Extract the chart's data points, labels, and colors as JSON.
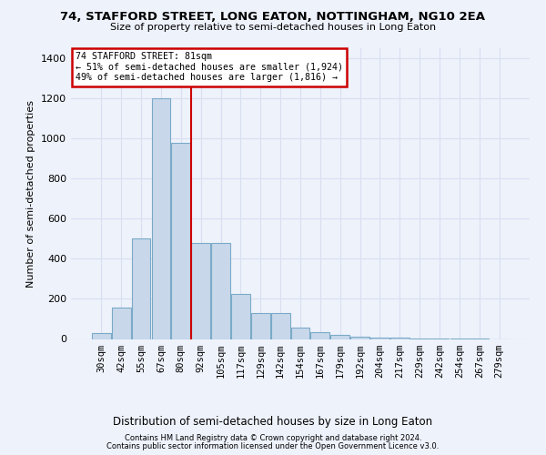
{
  "title": "74, STAFFORD STREET, LONG EATON, NOTTINGHAM, NG10 2EA",
  "subtitle": "Size of property relative to semi-detached houses in Long Eaton",
  "xlabel": "Distribution of semi-detached houses by size in Long Eaton",
  "ylabel": "Number of semi-detached properties",
  "annotation_line1": "74 STAFFORD STREET: 81sqm",
  "annotation_line2": "← 51% of semi-detached houses are smaller (1,924)",
  "annotation_line3": "49% of semi-detached houses are larger (1,816) →",
  "footer1": "Contains HM Land Registry data © Crown copyright and database right 2024.",
  "footer2": "Contains public sector information licensed under the Open Government Licence v3.0.",
  "bar_color": "#c8d8ea",
  "bar_edge_color": "#7aaac8",
  "vline_color": "#cc0000",
  "annotation_box_edgecolor": "#cc0000",
  "background_color": "#eef2fb",
  "grid_color": "#d8dff0",
  "categories": [
    "30sqm",
    "42sqm",
    "55sqm",
    "67sqm",
    "80sqm",
    "92sqm",
    "105sqm",
    "117sqm",
    "129sqm",
    "142sqm",
    "154sqm",
    "167sqm",
    "179sqm",
    "192sqm",
    "204sqm",
    "217sqm",
    "229sqm",
    "242sqm",
    "254sqm",
    "267sqm",
    "279sqm"
  ],
  "values": [
    28,
    155,
    500,
    1200,
    975,
    480,
    480,
    225,
    130,
    130,
    55,
    35,
    20,
    10,
    8,
    5,
    3,
    2,
    1,
    1,
    0
  ],
  "vline_index": 4.5,
  "ylim": [
    0,
    1450
  ],
  "yticks": [
    0,
    200,
    400,
    600,
    800,
    1000,
    1200,
    1400
  ]
}
